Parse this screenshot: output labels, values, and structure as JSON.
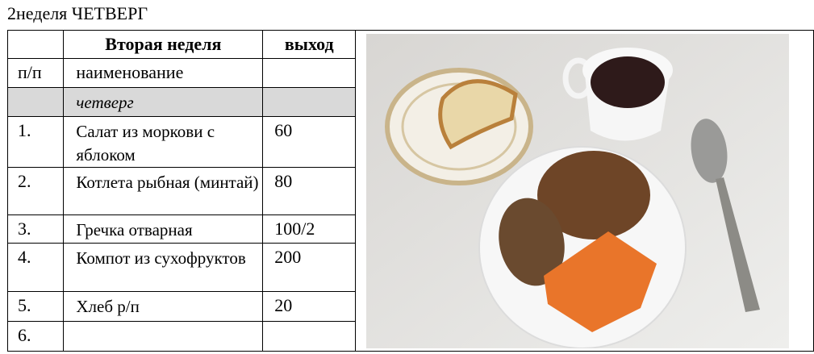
{
  "title": "2неделя ЧЕТВЕРГ",
  "table": {
    "header": {
      "col1": "",
      "col2": "Вторая неделя",
      "col3": "выход"
    },
    "subheader": {
      "col1": "п/п",
      "col2": "наименование",
      "col3": ""
    },
    "day_row": {
      "col2": "четверг"
    },
    "rows": [
      {
        "num": "1.",
        "name": "Салат из моркови с яблоком",
        "yield": "60"
      },
      {
        "num": "2.",
        "name": "Котлета рыбная (минтай)",
        "yield": "80"
      },
      {
        "num": "3.",
        "name": "Гречка отварная",
        "yield": "100/2"
      },
      {
        "num": "4.",
        "name": "Компот из сухофруктов",
        "yield": "200"
      },
      {
        "num": "5.",
        "name": "Хлеб р/п",
        "yield": "20"
      },
      {
        "num": "6.",
        "name": "",
        "yield": ""
      }
    ]
  },
  "photo": {
    "subject": "meal-photo"
  }
}
